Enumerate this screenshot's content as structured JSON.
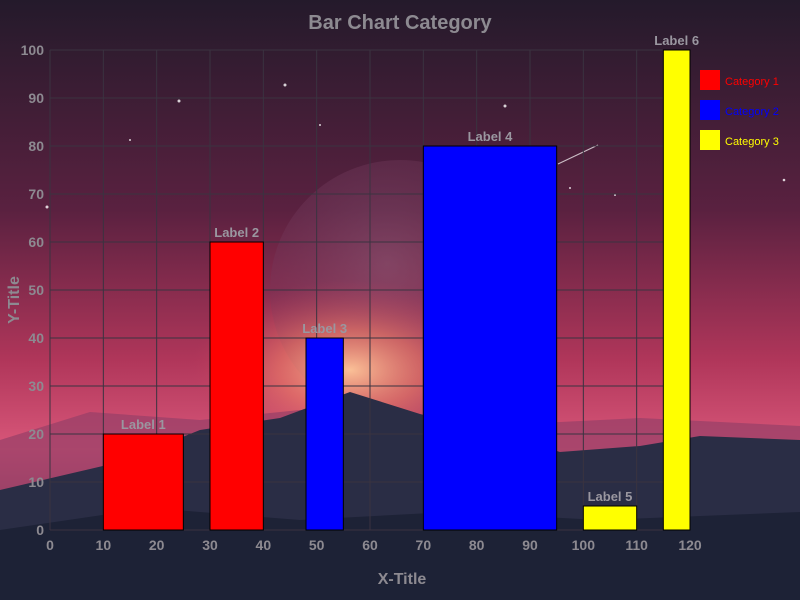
{
  "chart_data": {
    "type": "bar",
    "title": "Bar Chart Category",
    "xlabel": "X-Title",
    "ylabel": "Y-Title",
    "xlim": [
      0,
      120
    ],
    "ylim": [
      0,
      100
    ],
    "x_ticks": [
      0,
      10,
      20,
      30,
      40,
      50,
      60,
      70,
      80,
      90,
      100,
      110,
      120
    ],
    "y_ticks": [
      0,
      10,
      20,
      30,
      40,
      50,
      60,
      70,
      80,
      90,
      100
    ],
    "grid": true,
    "legend_position": "top-right",
    "bars": [
      {
        "label": "Label 1",
        "x_start": 10,
        "x_end": 25,
        "value": 20,
        "category": "Category 1"
      },
      {
        "label": "Label 2",
        "x_start": 30,
        "x_end": 40,
        "value": 60,
        "category": "Category 1"
      },
      {
        "label": "Label 3",
        "x_start": 48,
        "x_end": 55,
        "value": 40,
        "category": "Category 2"
      },
      {
        "label": "Label 4",
        "x_start": 70,
        "x_end": 95,
        "value": 80,
        "category": "Category 2"
      },
      {
        "label": "Label 5",
        "x_start": 100,
        "x_end": 110,
        "value": 5,
        "category": "Category 3"
      },
      {
        "label": "Label 6",
        "x_start": 115,
        "x_end": 120,
        "value": 100,
        "category": "Category 3"
      }
    ],
    "legend": [
      {
        "name": "Category 1",
        "color": "#ff0000"
      },
      {
        "name": "Category 2",
        "color": "#0000ff"
      },
      {
        "name": "Category 3",
        "color": "#ffff00"
      }
    ]
  }
}
